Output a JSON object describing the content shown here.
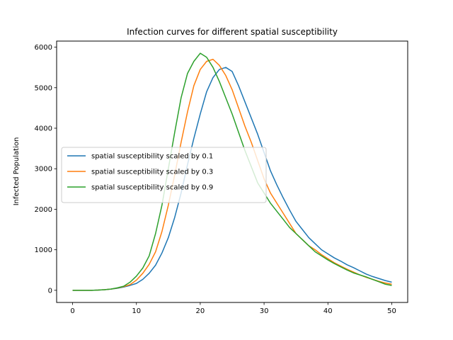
{
  "chart_data": {
    "type": "line",
    "title": "Infection curves for different spatial susceptibility",
    "xlabel": "",
    "ylabel": "Infected Population",
    "xlim": [
      -2.5,
      52.5
    ],
    "ylim": [
      -300,
      6150
    ],
    "xticks": [
      0,
      10,
      20,
      30,
      40,
      50
    ],
    "yticks": [
      0,
      1000,
      2000,
      3000,
      4000,
      5000,
      6000
    ],
    "grid": false,
    "legend_position": "center-left",
    "series": [
      {
        "name": "spatial susceptibility scaled by 0.1",
        "color": "#1f77b4",
        "x": [
          0,
          1,
          2,
          3,
          4,
          5,
          6,
          7,
          8,
          9,
          10,
          11,
          12,
          13,
          14,
          15,
          16,
          17,
          18,
          19,
          20,
          21,
          22,
          23,
          24,
          25,
          26,
          27,
          28,
          29,
          30,
          31,
          32,
          33,
          34,
          35,
          36,
          37,
          38,
          39,
          40,
          41,
          42,
          43,
          44,
          45,
          46,
          47,
          48,
          49,
          50
        ],
        "y": [
          0,
          0,
          0,
          0,
          5,
          15,
          30,
          50,
          80,
          120,
          170,
          270,
          420,
          620,
          920,
          1300,
          1800,
          2400,
          3100,
          3750,
          4350,
          4900,
          5250,
          5450,
          5500,
          5400,
          5050,
          4650,
          4250,
          3850,
          3400,
          2950,
          2600,
          2280,
          1980,
          1700,
          1500,
          1300,
          1150,
          1000,
          900,
          800,
          720,
          630,
          560,
          480,
          400,
          340,
          290,
          240,
          200
        ]
      },
      {
        "name": "spatial susceptibility scaled by 0.3",
        "color": "#ff7f0e",
        "x": [
          0,
          1,
          2,
          3,
          4,
          5,
          6,
          7,
          8,
          9,
          10,
          11,
          12,
          13,
          14,
          15,
          16,
          17,
          18,
          19,
          20,
          21,
          22,
          23,
          24,
          25,
          26,
          27,
          28,
          29,
          30,
          31,
          32,
          33,
          34,
          35,
          36,
          37,
          38,
          39,
          40,
          41,
          42,
          43,
          44,
          45,
          46,
          47,
          48,
          49,
          50
        ],
        "y": [
          0,
          0,
          0,
          0,
          5,
          15,
          30,
          55,
          90,
          140,
          250,
          420,
          640,
          950,
          1450,
          2100,
          2850,
          3650,
          4400,
          5050,
          5450,
          5650,
          5700,
          5550,
          5300,
          4950,
          4500,
          4050,
          3650,
          3200,
          2750,
          2400,
          2150,
          1900,
          1650,
          1400,
          1250,
          1100,
          1000,
          880,
          780,
          680,
          600,
          520,
          450,
          380,
          320,
          270,
          220,
          180,
          150
        ]
      },
      {
        "name": "spatial susceptibility scaled by 0.9",
        "color": "#2ca02c",
        "x": [
          0,
          1,
          2,
          3,
          4,
          5,
          6,
          7,
          8,
          9,
          10,
          11,
          12,
          13,
          14,
          15,
          16,
          17,
          18,
          19,
          20,
          21,
          22,
          23,
          24,
          25,
          26,
          27,
          28,
          29,
          30,
          31,
          32,
          33,
          34,
          35,
          36,
          37,
          38,
          39,
          40,
          41,
          42,
          43,
          44,
          45,
          46,
          47,
          48,
          49,
          50
        ],
        "y": [
          0,
          0,
          0,
          0,
          5,
          15,
          30,
          60,
          100,
          200,
          350,
          550,
          850,
          1400,
          2100,
          3000,
          3900,
          4750,
          5350,
          5650,
          5850,
          5750,
          5500,
          5150,
          4750,
          4350,
          3900,
          3450,
          3050,
          2650,
          2400,
          2150,
          1950,
          1750,
          1550,
          1400,
          1250,
          1100,
          950,
          850,
          750,
          660,
          580,
          500,
          430,
          380,
          330,
          270,
          210,
          150,
          120
        ]
      }
    ]
  }
}
